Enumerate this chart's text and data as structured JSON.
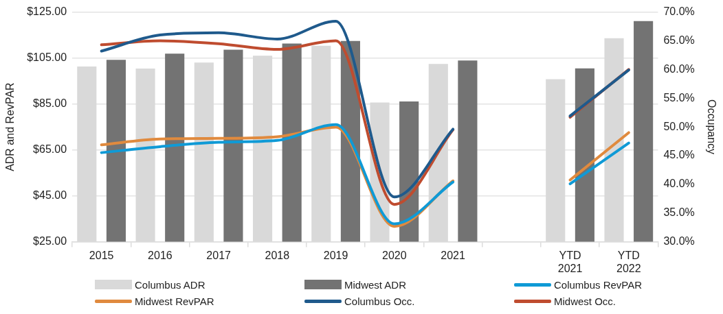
{
  "chart_data": {
    "type": "bar",
    "ylabel": "ADR and RevPAR",
    "y2label": "Occupancy",
    "categories": [
      "2015",
      "2016",
      "2017",
      "2018",
      "2019",
      "2020",
      "2021",
      null,
      "YTD 2021",
      "YTD 2022"
    ],
    "series": [
      {
        "name": "Columbus ADR",
        "color": "#d9d9d9",
        "values": [
          101.3,
          100.4,
          103.0,
          106.0,
          110.3,
          85.6,
          102.4,
          null,
          95.8,
          113.6
        ]
      },
      {
        "name": "Midwest ADR",
        "color": "#737373",
        "values": [
          104.2,
          106.9,
          108.6,
          111.3,
          112.4,
          86.1,
          103.9,
          null,
          100.5,
          121.1
        ]
      },
      {
        "name": "Columbus RevPAR",
        "type": "line",
        "color": "#0f9ad6",
        "values": [
          63.8,
          66.4,
          68.3,
          69.1,
          76.0,
          32.8,
          51.0,
          null,
          50.2,
          68.0
        ]
      },
      {
        "name": "Midwest RevPAR",
        "type": "line",
        "color": "#e08a3e",
        "values": [
          67.2,
          69.7,
          70.0,
          70.7,
          74.9,
          31.7,
          51.5,
          null,
          51.9,
          72.5
        ]
      },
      {
        "name": "Columbus Occ.",
        "type": "line",
        "axis": "y2",
        "color": "#1f5a8c",
        "values": [
          63.2,
          66.0,
          66.4,
          65.3,
          68.4,
          37.8,
          49.6,
          null,
          51.9,
          59.9
        ]
      },
      {
        "name": "Midwest Occ.",
        "type": "line",
        "axis": "y2",
        "color": "#bf4c2f",
        "values": [
          64.3,
          65.0,
          64.5,
          63.5,
          65.0,
          36.5,
          49.5,
          null,
          51.7,
          60.0
        ]
      }
    ],
    "ylim": [
      25,
      125
    ],
    "yticks": [
      {
        "value": 25,
        "label": "$25.00"
      },
      {
        "value": 45,
        "label": "$45.00"
      },
      {
        "value": 65,
        "label": "$65.00"
      },
      {
        "value": 85,
        "label": "$85.00"
      },
      {
        "value": 105,
        "label": "$105.00"
      },
      {
        "value": 125,
        "label": "$125.00"
      }
    ],
    "y2lim": [
      30,
      70
    ],
    "y2ticks": [
      {
        "value": 30,
        "label": "30.0%"
      },
      {
        "value": 35,
        "label": "35.0%"
      },
      {
        "value": 40,
        "label": "40.0%"
      },
      {
        "value": 45,
        "label": "45.0%"
      },
      {
        "value": 50,
        "label": "50.0%"
      },
      {
        "value": 55,
        "label": "55.0%"
      },
      {
        "value": 60,
        "label": "60.0%"
      },
      {
        "value": 65,
        "label": "65.0%"
      },
      {
        "value": 70,
        "label": "70.0%"
      }
    ],
    "grid": "y",
    "legend": "bottom",
    "marker": "none",
    "line_style": "solid"
  }
}
